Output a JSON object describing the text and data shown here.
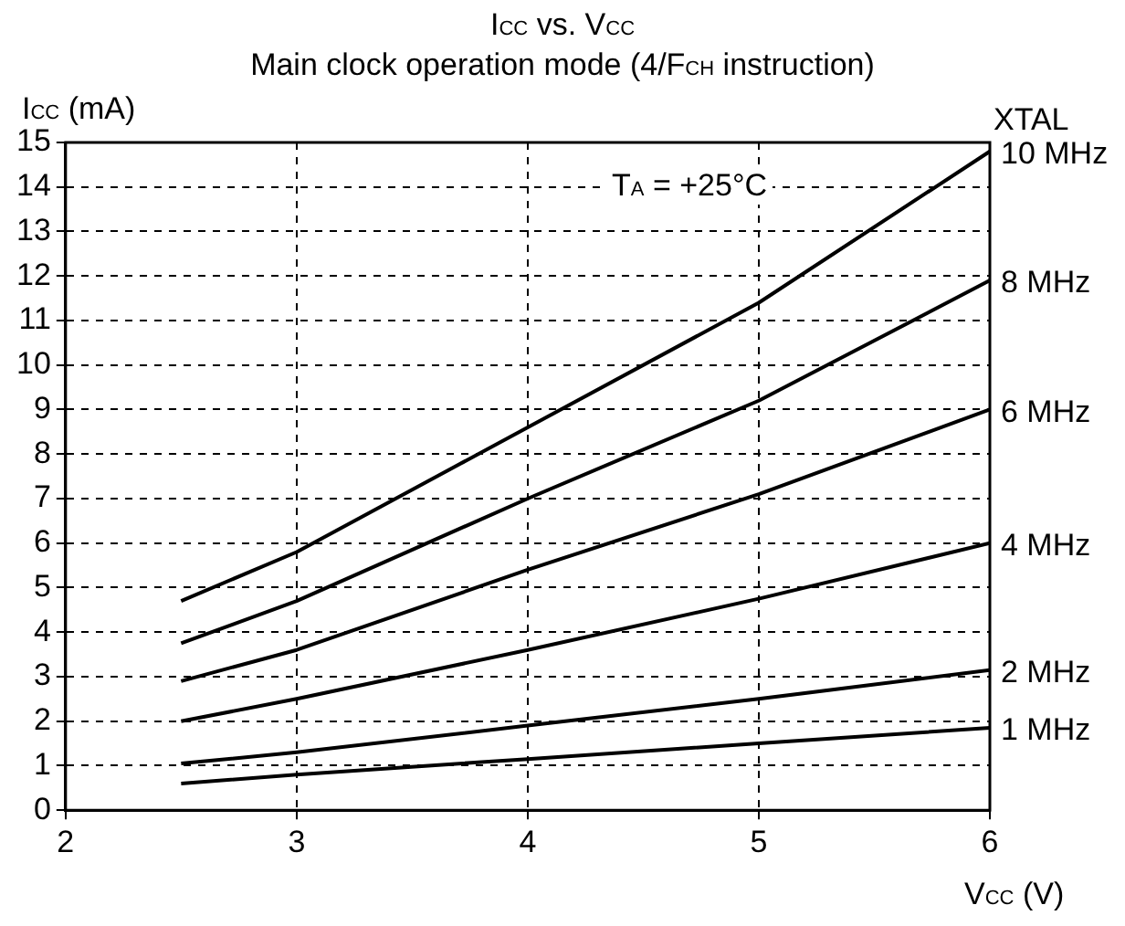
{
  "chart_data": {
    "type": "line",
    "title": "I$_{CC}$ vs. V$_{CC}$",
    "subtitle": "Main clock operation mode (4/F$_{CH}$ instruction)",
    "xlabel": "V$_{CC}$ (V)",
    "ylabel": "I$_{CC}$ (mA)",
    "legend_title": "XTAL",
    "annotations": [
      "T$_{A}$ = +25°C"
    ],
    "x": [
      2.5,
      3,
      4,
      5,
      6
    ],
    "series": [
      {
        "name": "10 MHz",
        "color": "#000000",
        "values": [
          4.7,
          5.8,
          8.6,
          11.4,
          14.8
        ]
      },
      {
        "name": "8 MHz",
        "color": "#000000",
        "values": [
          3.75,
          4.7,
          7.0,
          9.2,
          11.9
        ]
      },
      {
        "name": "6 MHz",
        "color": "#000000",
        "values": [
          2.9,
          3.6,
          5.4,
          7.1,
          9.0
        ]
      },
      {
        "name": "4 MHz",
        "color": "#000000",
        "values": [
          2.0,
          2.5,
          3.6,
          4.75,
          6.0
        ]
      },
      {
        "name": "2 MHz",
        "color": "#000000",
        "values": [
          1.05,
          1.3,
          1.9,
          2.5,
          3.15
        ]
      },
      {
        "name": "1 MHz",
        "color": "#000000",
        "values": [
          0.6,
          0.8,
          1.15,
          1.5,
          1.85
        ]
      }
    ],
    "xlim": [
      2,
      6
    ],
    "xticks": [
      2,
      3,
      4,
      5,
      6
    ],
    "ylim": [
      0,
      15
    ],
    "yticks": [
      0,
      1,
      2,
      3,
      4,
      5,
      6,
      7,
      8,
      9,
      10,
      11,
      12,
      13,
      14,
      15
    ],
    "grid": true,
    "legend": false,
    "marker": "none",
    "line_style": "solid"
  }
}
